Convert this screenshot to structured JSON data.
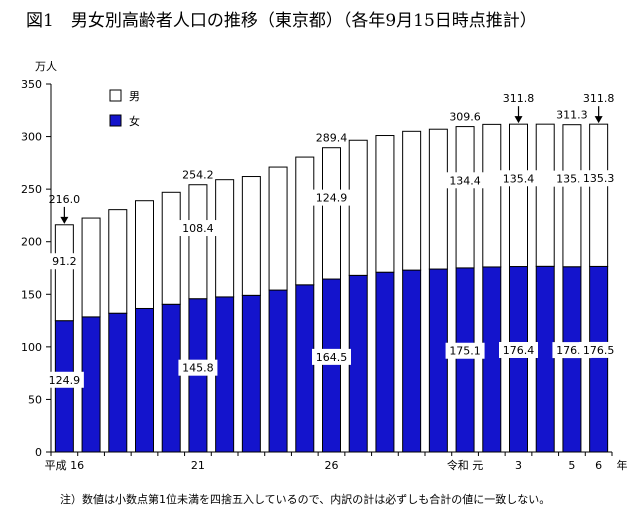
{
  "chart_data": {
    "type": "bar",
    "stacked": true,
    "title": "図1　男女別高齢者人口の推移（東京都）（各年9月15日時点推計）",
    "y_unit": "万人",
    "x_unit": "年",
    "ylim": [
      0,
      350
    ],
    "y_ticks": [
      0,
      50,
      100,
      150,
      200,
      250,
      300,
      350
    ],
    "x_tick_labels": [
      {
        "index": 0,
        "label": "平成 16"
      },
      {
        "index": 5,
        "label": "21"
      },
      {
        "index": 10,
        "label": "26"
      },
      {
        "index": 15,
        "label": "令和 元"
      },
      {
        "index": 17,
        "label": "3"
      },
      {
        "index": 19,
        "label": "5"
      },
      {
        "index": 20,
        "label": "6"
      }
    ],
    "categories": [
      "平成16",
      "平成17",
      "平成18",
      "平成19",
      "平成20",
      "平成21",
      "平成22",
      "平成23",
      "平成24",
      "平成25",
      "平成26",
      "平成27",
      "平成28",
      "平成29",
      "平成30",
      "令和元",
      "令和2",
      "令和3",
      "令和4",
      "令和5",
      "令和6"
    ],
    "series": [
      {
        "name": "女",
        "color": "#1414cc",
        "values": [
          124.9,
          128.5,
          132.0,
          136.5,
          140.5,
          145.8,
          147.5,
          149.0,
          154.0,
          159.0,
          164.5,
          168.0,
          171.0,
          173.0,
          174.0,
          175.1,
          176.0,
          176.4,
          176.6,
          176.2,
          176.5
        ]
      },
      {
        "name": "男",
        "color": "#ffffff",
        "values": [
          91.2,
          94.0,
          98.5,
          102.5,
          106.5,
          108.4,
          111.5,
          113.0,
          117.0,
          121.5,
          124.9,
          128.5,
          130.0,
          132.0,
          133.0,
          134.4,
          135.6,
          135.4,
          135.2,
          135.1,
          135.3
        ]
      }
    ],
    "totals": [
      216.0,
      222.5,
      230.5,
      239.0,
      247.0,
      254.2,
      259.0,
      262.0,
      271.0,
      280.5,
      289.4,
      296.5,
      301.0,
      305.0,
      307.0,
      309.6,
      311.6,
      311.8,
      311.8,
      311.3,
      311.8
    ],
    "data_labels": {
      "totals": [
        {
          "index": 0,
          "text": "216.0"
        },
        {
          "index": 5,
          "text": "254.2"
        },
        {
          "index": 10,
          "text": "289.4"
        },
        {
          "index": 15,
          "text": "309.6"
        },
        {
          "index": 17,
          "text": "311.8"
        },
        {
          "index": 19,
          "text": "311.3"
        },
        {
          "index": 20,
          "text": "311.8"
        }
      ],
      "female": [
        {
          "index": 0,
          "text": "124.9"
        },
        {
          "index": 5,
          "text": "145.8"
        },
        {
          "index": 10,
          "text": "164.5"
        },
        {
          "index": 15,
          "text": "175.1"
        },
        {
          "index": 17,
          "text": "176.4"
        },
        {
          "index": 19,
          "text": "176.2"
        },
        {
          "index": 20,
          "text": "176.5"
        }
      ],
      "male": [
        {
          "index": 0,
          "text": "91.2"
        },
        {
          "index": 5,
          "text": "108.4"
        },
        {
          "index": 10,
          "text": "124.9"
        },
        {
          "index": 15,
          "text": "134.4"
        },
        {
          "index": 17,
          "text": "135.4"
        },
        {
          "index": 19,
          "text": "135.1"
        },
        {
          "index": 20,
          "text": "135.3"
        }
      ]
    },
    "arrows_at_index": [
      0,
      17,
      20
    ],
    "legend": {
      "position": "top-left",
      "entries": [
        "男",
        "女"
      ]
    },
    "grid": false
  },
  "footnote": "注）数値は小数点第1位未満を四捨五入しているので、内訳の計は必ずしも合計の値に一致しない。"
}
